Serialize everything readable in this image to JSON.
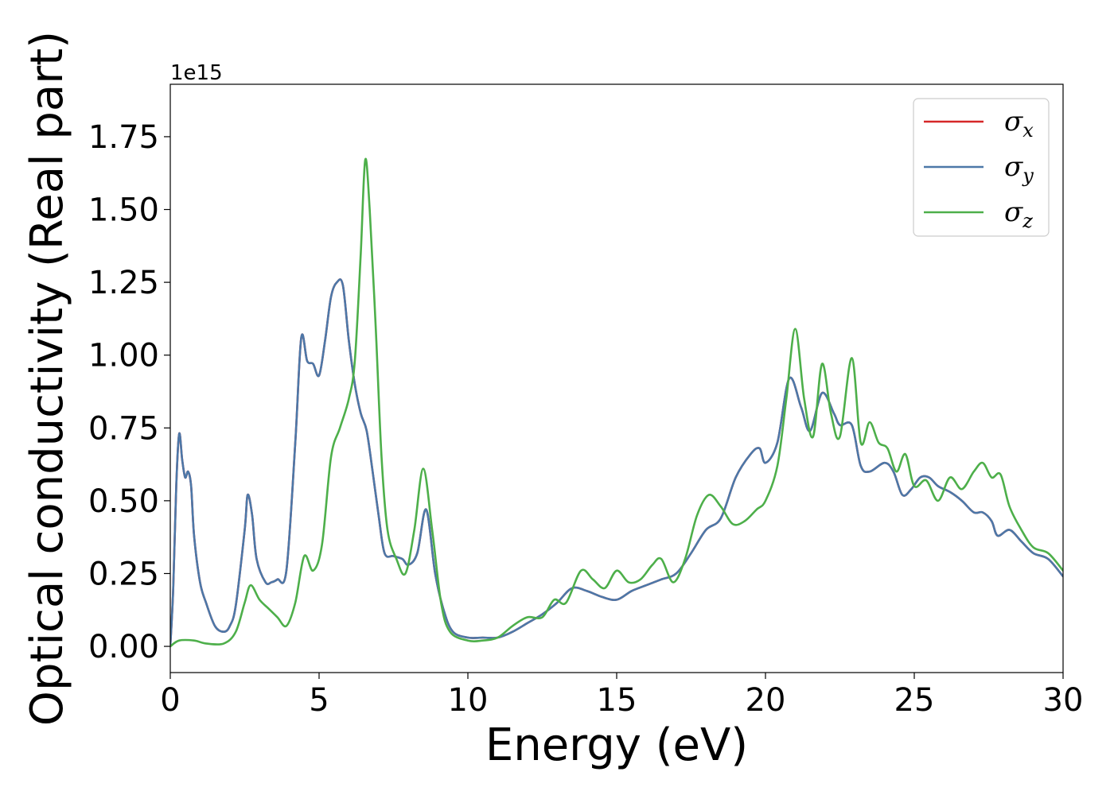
{
  "chart_data": {
    "type": "line",
    "title": "",
    "xlabel": "Energy (eV)",
    "ylabel": "Optical conductivity (Real part)",
    "y_offset_label": "1e15",
    "xlim": [
      0,
      30
    ],
    "ylim": [
      -0.09,
      1.93
    ],
    "xticks": [
      0,
      5,
      10,
      15,
      20,
      25,
      30
    ],
    "xtick_labels": [
      "0",
      "5",
      "10",
      "15",
      "20",
      "25",
      "30"
    ],
    "yticks": [
      0,
      0.25,
      0.5,
      0.75,
      1.0,
      1.25,
      1.5,
      1.75
    ],
    "ytick_labels": [
      "0.00",
      "0.25",
      "0.50",
      "0.75",
      "1.00",
      "1.25",
      "1.50",
      "1.75"
    ],
    "grid": false,
    "legend_position": "top-right",
    "series": [
      {
        "name": "σx",
        "symbol": "σ",
        "subscript": "x",
        "color": "#d62728",
        "x": [
          0,
          0.1,
          0.2,
          0.3,
          0.4,
          0.5,
          0.6,
          0.7,
          0.8,
          1.0,
          1.2,
          1.5,
          1.8,
          2.0,
          2.2,
          2.5,
          2.6,
          2.75,
          2.9,
          3.2,
          3.4,
          3.6,
          3.9,
          4.2,
          4.4,
          4.6,
          4.8,
          5.0,
          5.2,
          5.4,
          5.6,
          5.8,
          6.0,
          6.2,
          6.4,
          6.6,
          6.8,
          7.0,
          7.2,
          7.5,
          7.8,
          8.0,
          8.3,
          8.6,
          8.9,
          9.2,
          9.5,
          10.0,
          10.5,
          11.0,
          11.5,
          12.0,
          12.5,
          13.0,
          13.5,
          14.0,
          14.5,
          15.0,
          15.5,
          16.0,
          16.5,
          17.0,
          17.5,
          18.0,
          18.5,
          19.0,
          19.5,
          19.8,
          20.0,
          20.4,
          20.8,
          21.2,
          21.5,
          21.9,
          22.3,
          22.5,
          22.9,
          23.2,
          23.5,
          24.0,
          24.3,
          24.6,
          24.9,
          25.2,
          25.5,
          25.8,
          26.2,
          26.6,
          27.0,
          27.3,
          27.6,
          27.8,
          28.2,
          28.6,
          29.0,
          29.5,
          30.0
        ],
        "y": [
          0,
          0.2,
          0.55,
          0.73,
          0.64,
          0.58,
          0.6,
          0.55,
          0.38,
          0.22,
          0.15,
          0.07,
          0.05,
          0.07,
          0.14,
          0.4,
          0.52,
          0.45,
          0.3,
          0.22,
          0.22,
          0.23,
          0.26,
          0.7,
          1.06,
          0.98,
          0.97,
          0.93,
          1.05,
          1.2,
          1.25,
          1.24,
          1.05,
          0.9,
          0.8,
          0.74,
          0.6,
          0.45,
          0.32,
          0.31,
          0.3,
          0.28,
          0.32,
          0.47,
          0.25,
          0.12,
          0.05,
          0.03,
          0.03,
          0.03,
          0.05,
          0.08,
          0.11,
          0.15,
          0.2,
          0.19,
          0.17,
          0.16,
          0.19,
          0.21,
          0.23,
          0.25,
          0.32,
          0.4,
          0.44,
          0.58,
          0.66,
          0.68,
          0.63,
          0.7,
          0.92,
          0.82,
          0.74,
          0.87,
          0.8,
          0.76,
          0.76,
          0.62,
          0.6,
          0.63,
          0.6,
          0.52,
          0.54,
          0.58,
          0.58,
          0.55,
          0.53,
          0.5,
          0.46,
          0.46,
          0.43,
          0.38,
          0.4,
          0.36,
          0.32,
          0.3,
          0.24
        ]
      },
      {
        "name": "σy",
        "symbol": "σ",
        "subscript": "y",
        "color": "#4c78a8",
        "x": [
          0,
          0.1,
          0.2,
          0.3,
          0.4,
          0.5,
          0.6,
          0.7,
          0.8,
          1.0,
          1.2,
          1.5,
          1.8,
          2.0,
          2.2,
          2.5,
          2.6,
          2.75,
          2.9,
          3.2,
          3.4,
          3.6,
          3.9,
          4.2,
          4.4,
          4.6,
          4.8,
          5.0,
          5.2,
          5.4,
          5.6,
          5.8,
          6.0,
          6.2,
          6.4,
          6.6,
          6.8,
          7.0,
          7.2,
          7.5,
          7.8,
          8.0,
          8.3,
          8.6,
          8.9,
          9.2,
          9.5,
          10.0,
          10.5,
          11.0,
          11.5,
          12.0,
          12.5,
          13.0,
          13.5,
          14.0,
          14.5,
          15.0,
          15.5,
          16.0,
          16.5,
          17.0,
          17.5,
          18.0,
          18.5,
          19.0,
          19.5,
          19.8,
          20.0,
          20.4,
          20.8,
          21.2,
          21.5,
          21.9,
          22.3,
          22.5,
          22.9,
          23.2,
          23.5,
          24.0,
          24.3,
          24.6,
          24.9,
          25.2,
          25.5,
          25.8,
          26.2,
          26.6,
          27.0,
          27.3,
          27.6,
          27.8,
          28.2,
          28.6,
          29.0,
          29.5,
          30.0
        ],
        "y": [
          0,
          0.2,
          0.55,
          0.73,
          0.64,
          0.58,
          0.6,
          0.55,
          0.38,
          0.22,
          0.15,
          0.07,
          0.05,
          0.07,
          0.14,
          0.4,
          0.52,
          0.45,
          0.3,
          0.22,
          0.22,
          0.23,
          0.26,
          0.7,
          1.06,
          0.98,
          0.97,
          0.93,
          1.05,
          1.2,
          1.25,
          1.24,
          1.05,
          0.9,
          0.8,
          0.74,
          0.6,
          0.45,
          0.32,
          0.31,
          0.3,
          0.28,
          0.32,
          0.47,
          0.25,
          0.12,
          0.05,
          0.03,
          0.03,
          0.03,
          0.05,
          0.08,
          0.11,
          0.15,
          0.2,
          0.19,
          0.17,
          0.16,
          0.19,
          0.21,
          0.23,
          0.25,
          0.32,
          0.4,
          0.44,
          0.58,
          0.66,
          0.68,
          0.63,
          0.7,
          0.92,
          0.82,
          0.74,
          0.87,
          0.8,
          0.76,
          0.76,
          0.62,
          0.6,
          0.63,
          0.6,
          0.52,
          0.54,
          0.58,
          0.58,
          0.55,
          0.53,
          0.5,
          0.46,
          0.46,
          0.43,
          0.38,
          0.4,
          0.36,
          0.32,
          0.3,
          0.24
        ]
      },
      {
        "name": "σz",
        "symbol": "σ",
        "subscript": "z",
        "color": "#4daf4a",
        "x": [
          0,
          0.3,
          0.8,
          1.2,
          1.8,
          2.2,
          2.5,
          2.7,
          3.0,
          3.3,
          3.6,
          3.9,
          4.2,
          4.5,
          4.8,
          5.1,
          5.4,
          5.7,
          6.0,
          6.2,
          6.4,
          6.55,
          6.7,
          6.9,
          7.1,
          7.3,
          7.6,
          7.9,
          8.2,
          8.5,
          8.8,
          9.1,
          9.4,
          10.0,
          10.5,
          11.0,
          11.5,
          12.0,
          12.5,
          12.9,
          13.3,
          13.8,
          14.2,
          14.6,
          15.0,
          15.4,
          15.8,
          16.2,
          16.5,
          16.9,
          17.3,
          17.7,
          18.1,
          18.5,
          18.9,
          19.3,
          19.7,
          20.0,
          20.4,
          20.7,
          21.0,
          21.3,
          21.6,
          21.9,
          22.2,
          22.5,
          22.9,
          23.2,
          23.5,
          23.8,
          24.1,
          24.4,
          24.7,
          25.0,
          25.4,
          25.8,
          26.2,
          26.6,
          27.0,
          27.3,
          27.6,
          27.9,
          28.2,
          28.6,
          29.0,
          29.5,
          30.0
        ],
        "y": [
          0,
          0.02,
          0.02,
          0.01,
          0.01,
          0.05,
          0.15,
          0.21,
          0.16,
          0.13,
          0.1,
          0.07,
          0.15,
          0.31,
          0.26,
          0.35,
          0.65,
          0.75,
          0.85,
          0.98,
          1.35,
          1.67,
          1.5,
          1.1,
          0.65,
          0.4,
          0.3,
          0.25,
          0.4,
          0.61,
          0.4,
          0.15,
          0.05,
          0.02,
          0.02,
          0.03,
          0.07,
          0.1,
          0.1,
          0.16,
          0.15,
          0.26,
          0.23,
          0.2,
          0.26,
          0.22,
          0.23,
          0.28,
          0.3,
          0.22,
          0.3,
          0.45,
          0.52,
          0.48,
          0.42,
          0.43,
          0.47,
          0.5,
          0.62,
          0.85,
          1.09,
          0.85,
          0.72,
          0.97,
          0.8,
          0.72,
          0.99,
          0.7,
          0.77,
          0.7,
          0.68,
          0.6,
          0.66,
          0.55,
          0.57,
          0.5,
          0.58,
          0.54,
          0.6,
          0.63,
          0.58,
          0.59,
          0.48,
          0.4,
          0.34,
          0.32,
          0.26
        ]
      }
    ]
  }
}
